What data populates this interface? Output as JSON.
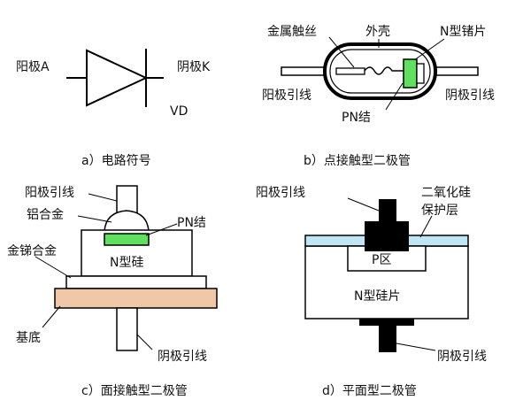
{
  "panel_a": {
    "anode": "阳极A",
    "cathode": "阴极K",
    "ref": "VD",
    "caption": "a）电路符号"
  },
  "panel_b": {
    "wire": "金属触丝",
    "shell": "外壳",
    "chip": "N型锗片",
    "anode_lead": "阳极引线",
    "cathode_lead": "阴极引线",
    "junction": "PN结",
    "caption": "b）点接触型二极管"
  },
  "panel_c": {
    "anode_lead": "阳极引线",
    "al_alloy": "铝合金",
    "junction": "PN结",
    "ausb_alloy": "金锑合金",
    "n_si": "N型硅",
    "base": "基底",
    "cathode_lead": "阴极引线",
    "caption": "c）面接触型二极管"
  },
  "panel_d": {
    "anode_lead": "阳极引线",
    "sio2_line1": "二氧化硅",
    "sio2_line2": "保护层",
    "p_region": "P区",
    "n_wafer": "N型硅片",
    "cathode_lead": "阴极引线",
    "caption": "d）平面型二极管"
  },
  "colors": {
    "junction_green": "#5fe05f",
    "base_tan": "#f0c8a8",
    "oxide_cyan": "#bfe6f2",
    "lead_black": "#000000"
  }
}
